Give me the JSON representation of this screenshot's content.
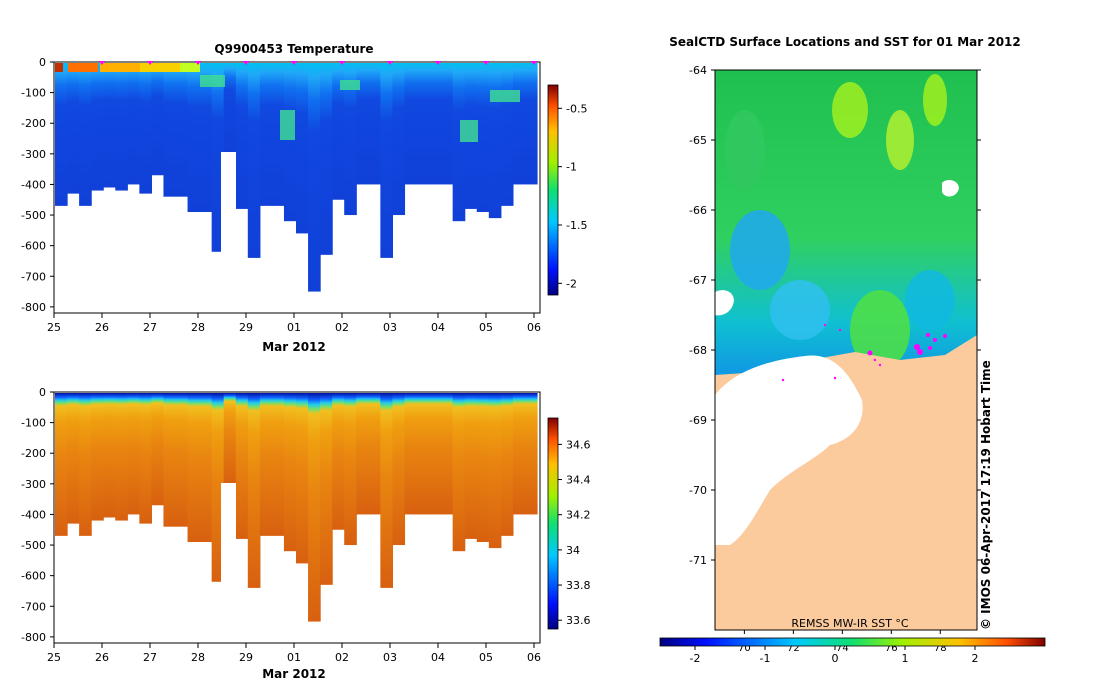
{
  "chart_data": [
    {
      "type": "heatmap",
      "title": "Q9900453  Temperature",
      "xlabel": "Mar 2012",
      "x_ticks": [
        "25",
        "26",
        "27",
        "28",
        "29",
        "01",
        "02",
        "03",
        "04",
        "05",
        "06"
      ],
      "y_ticks": [
        "0",
        "-100",
        "-200",
        "-300",
        "-400",
        "-500",
        "-600",
        "-700",
        "-800"
      ],
      "ylim": [
        -820,
        0
      ],
      "colorbar": {
        "ticks": [
          "-0.5",
          "-1",
          "-1.5",
          "-2"
        ],
        "range": [
          -2.1,
          -0.3
        ]
      },
      "profile_depths": [
        -470,
        -430,
        -470,
        -420,
        -410,
        -420,
        -400,
        -430,
        -370,
        -440,
        -440,
        -490,
        -490,
        -620,
        -300,
        -480,
        -640,
        -470,
        -470,
        -520,
        -560,
        -750,
        -630,
        -450,
        -500,
        -400,
        -400,
        -640,
        -500,
        -400,
        -400,
        -400,
        -400,
        -520,
        -480,
        -490,
        -510,
        -470,
        -400,
        -400
      ]
    },
    {
      "type": "heatmap",
      "title": "",
      "xlabel": "Mar 2012",
      "x_ticks": [
        "25",
        "26",
        "27",
        "28",
        "29",
        "01",
        "02",
        "03",
        "04",
        "05",
        "06"
      ],
      "y_ticks": [
        "0",
        "-100",
        "-200",
        "-300",
        "-400",
        "-500",
        "-600",
        "-700",
        "-800"
      ],
      "ylim": [
        -820,
        0
      ],
      "colorbar": {
        "ticks": [
          "34.6",
          "34.4",
          "34.2",
          "34",
          "33.8",
          "33.6"
        ],
        "range": [
          33.55,
          34.75
        ]
      }
    },
    {
      "type": "heatmap",
      "title": "SealCTD Surface Locations and SST for 01 Mar 2012",
      "y_ticks": [
        "-64",
        "-65",
        "-66",
        "-67",
        "-68",
        "-69",
        "-70",
        "-71"
      ],
      "x_ticks": [
        "70",
        "72",
        "74",
        "76",
        "78"
      ],
      "colorbar": {
        "ticks": [
          "-2",
          "-1",
          "0",
          "1",
          "2"
        ],
        "range": [
          -2.5,
          3.0
        ]
      },
      "source_label": "REMSS MW-IR SST °C",
      "credit": "© IMOS 06-Apr-2017 17:19 Hobart Time"
    }
  ],
  "colors": {
    "land": "#fbcb9e",
    "marker": "#ff00ff"
  }
}
